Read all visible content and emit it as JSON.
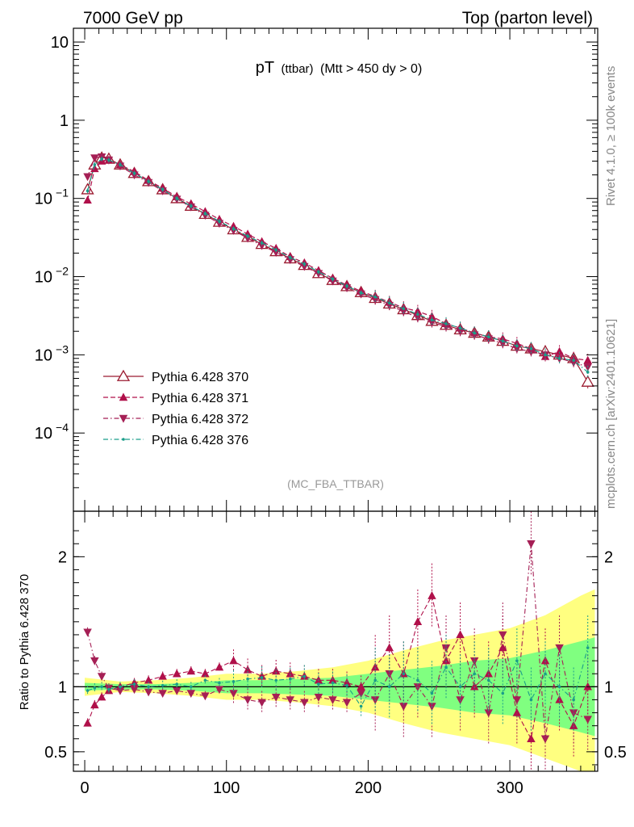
{
  "header": {
    "left_label": "7000 GeV pp",
    "right_label": "Top (parton level)"
  },
  "title": {
    "main": "pT",
    "sub": "(ttbar)",
    "cut": "(Mtt > 450 dy > 0)"
  },
  "analysis_label": "(MC_FBA_TTBAR)",
  "side_labels": {
    "rivet": "Rivet 4.1.0, ≥ 100k events",
    "site": "mcplots.cern.ch [arXiv:2401.10621]"
  },
  "colors": {
    "s370": "#9b1b30",
    "s371": "#b0104a",
    "s372": "#a51f55",
    "s376": "#1a9e8a",
    "band_yellow": "#ffff80",
    "band_green": "#80ff80"
  },
  "chart_data": [
    {
      "type": "line",
      "yscale": "log",
      "title": "pT (ttbar) (Mtt > 450 dy > 0)",
      "xlabel": "",
      "ylabel": "",
      "xlim": [
        -8,
        362
      ],
      "ylim": [
        1e-05,
        15
      ],
      "y_ticks": [
        {
          "value": 10,
          "label": "10"
        },
        {
          "value": 1,
          "label": "1"
        },
        {
          "value": 0.1,
          "label": "10",
          "exp": "−1"
        },
        {
          "value": 0.01,
          "label": "10",
          "exp": "−2"
        },
        {
          "value": 0.001,
          "label": "10",
          "exp": "−3"
        },
        {
          "value": 0.0001,
          "label": "10",
          "exp": "−4"
        }
      ],
      "legend": [
        {
          "label": "Pythia 6.428 370",
          "marker": "triangle-open",
          "style": "solid",
          "color": "#9b1b30"
        },
        {
          "label": "Pythia 6.428 371",
          "marker": "triangle-up",
          "style": "dashed",
          "color": "#b0104a"
        },
        {
          "label": "Pythia 6.428 372",
          "marker": "triangle-down",
          "style": "dashdot",
          "color": "#a51f55"
        },
        {
          "label": "Pythia 6.428 376",
          "marker": "dot",
          "style": "dashdot",
          "color": "#1a9e8a"
        }
      ],
      "legend_position": "bottom-left",
      "series": [
        {
          "name": "Pythia 6.428 370",
          "x": [
            2,
            7,
            12,
            17,
            25,
            35,
            45,
            55,
            65,
            75,
            85,
            95,
            105,
            115,
            125,
            135,
            145,
            155,
            165,
            175,
            185,
            195,
            205,
            215,
            225,
            235,
            245,
            255,
            265,
            275,
            285,
            295,
            305,
            315,
            325,
            335,
            345,
            355
          ],
          "y": [
            0.13,
            0.27,
            0.33,
            0.32,
            0.27,
            0.21,
            0.165,
            0.13,
            0.1,
            0.08,
            0.063,
            0.05,
            0.04,
            0.032,
            0.026,
            0.021,
            0.017,
            0.014,
            0.011,
            0.009,
            0.0075,
            0.0063,
            0.0053,
            0.0045,
            0.0038,
            0.0032,
            0.0027,
            0.0024,
            0.0021,
            0.0019,
            0.0017,
            0.0015,
            0.0013,
            0.0012,
            0.0011,
            0.001,
            0.0009,
            0.00045
          ]
        },
        {
          "name": "Pythia 6.428 371",
          "x": [
            2,
            7,
            12,
            17,
            25,
            35,
            45,
            55,
            65,
            75,
            85,
            95,
            105,
            115,
            125,
            135,
            145,
            155,
            165,
            175,
            185,
            195,
            205,
            215,
            225,
            235,
            245,
            255,
            265,
            275,
            285,
            295,
            305,
            315,
            325,
            335,
            345,
            355
          ],
          "y": [
            0.095,
            0.24,
            0.3,
            0.31,
            0.27,
            0.22,
            0.17,
            0.135,
            0.105,
            0.085,
            0.068,
            0.054,
            0.044,
            0.035,
            0.028,
            0.023,
            0.018,
            0.015,
            0.012,
            0.0095,
            0.0078,
            0.0065,
            0.0056,
            0.0047,
            0.004,
            0.0036,
            0.0031,
            0.0025,
            0.0022,
            0.0019,
            0.0017,
            0.0016,
            0.0014,
            0.0012,
            0.00095,
            0.0011,
            0.0009,
            0.00085
          ]
        },
        {
          "name": "Pythia 6.428 372",
          "x": [
            2,
            7,
            12,
            17,
            25,
            35,
            45,
            55,
            65,
            75,
            85,
            95,
            105,
            115,
            125,
            135,
            145,
            155,
            165,
            175,
            185,
            195,
            205,
            215,
            225,
            235,
            245,
            255,
            265,
            275,
            285,
            295,
            305,
            315,
            325,
            335,
            345,
            355
          ],
          "y": [
            0.19,
            0.33,
            0.34,
            0.31,
            0.26,
            0.2,
            0.16,
            0.125,
            0.098,
            0.078,
            0.061,
            0.048,
            0.039,
            0.031,
            0.025,
            0.0205,
            0.0165,
            0.0135,
            0.011,
            0.0088,
            0.0072,
            0.006,
            0.0051,
            0.0043,
            0.0036,
            0.003,
            0.0026,
            0.0023,
            0.002,
            0.0018,
            0.0016,
            0.0014,
            0.0012,
            0.0011,
            0.001,
            0.0009,
            0.0008,
            0.0007
          ]
        },
        {
          "name": "Pythia 6.428 376",
          "x": [
            2,
            7,
            12,
            17,
            25,
            35,
            45,
            55,
            65,
            75,
            85,
            95,
            105,
            115,
            125,
            135,
            145,
            155,
            165,
            175,
            185,
            195,
            205,
            215,
            225,
            235,
            245,
            255,
            265,
            275,
            285,
            295,
            305,
            315,
            325,
            335,
            345,
            355
          ],
          "y": [
            0.125,
            0.27,
            0.32,
            0.31,
            0.27,
            0.21,
            0.165,
            0.13,
            0.1,
            0.08,
            0.064,
            0.051,
            0.041,
            0.033,
            0.027,
            0.022,
            0.0175,
            0.0145,
            0.0115,
            0.0093,
            0.0076,
            0.0062,
            0.0055,
            0.0046,
            0.0039,
            0.0033,
            0.0028,
            0.0025,
            0.0022,
            0.0019,
            0.0017,
            0.0015,
            0.0013,
            0.0012,
            0.001,
            0.0009,
            0.00085,
            0.0006
          ]
        }
      ]
    },
    {
      "type": "line",
      "title": "",
      "ylabel": "Ratio to Pythia 6.428 370",
      "xlabel": "",
      "xlim": [
        -8,
        362
      ],
      "ylim": [
        0.35,
        2.35
      ],
      "x_ticks": [
        0,
        100,
        200,
        300
      ],
      "x_tick_labels": [
        "0",
        "100",
        "200",
        "300"
      ],
      "y_ticks": [
        0.5,
        1,
        2
      ],
      "y_tick_labels": [
        "0.5",
        "1",
        "2"
      ],
      "bands": {
        "x": [
          0,
          25,
          50,
          75,
          100,
          125,
          150,
          175,
          200,
          225,
          250,
          275,
          300,
          325,
          350,
          360
        ],
        "yellow_half_width": [
          0.07,
          0.04,
          0.05,
          0.07,
          0.1,
          0.1,
          0.12,
          0.15,
          0.2,
          0.28,
          0.35,
          0.4,
          0.45,
          0.55,
          0.7,
          0.75
        ],
        "green_half_width": [
          0.03,
          0.02,
          0.02,
          0.03,
          0.05,
          0.05,
          0.06,
          0.07,
          0.1,
          0.13,
          0.16,
          0.2,
          0.22,
          0.28,
          0.35,
          0.38
        ]
      },
      "series": [
        {
          "name": "Pythia 6.428 371",
          "x": [
            2,
            7,
            12,
            17,
            25,
            35,
            45,
            55,
            65,
            75,
            85,
            95,
            105,
            115,
            125,
            135,
            145,
            155,
            165,
            175,
            185,
            195,
            205,
            215,
            225,
            235,
            245,
            255,
            265,
            275,
            285,
            295,
            305,
            315,
            325,
            335,
            345,
            355
          ],
          "y": [
            0.72,
            0.86,
            0.92,
            0.97,
            1.0,
            1.03,
            1.05,
            1.08,
            1.1,
            1.12,
            1.1,
            1.15,
            1.2,
            1.13,
            1.08,
            1.12,
            1.1,
            1.08,
            1.05,
            1.05,
            1.03,
            1.0,
            1.15,
            1.3,
            1.1,
            1.5,
            1.7,
            1.2,
            1.4,
            1.0,
            1.1,
            1.3,
            0.8,
            0.6,
            1.2,
            0.9,
            0.7,
            1.0
          ]
        },
        {
          "name": "Pythia 6.428 372",
          "x": [
            2,
            7,
            12,
            17,
            25,
            35,
            45,
            55,
            65,
            75,
            85,
            95,
            105,
            115,
            125,
            135,
            145,
            155,
            165,
            175,
            185,
            195,
            205,
            215,
            225,
            235,
            245,
            255,
            265,
            275,
            285,
            295,
            305,
            315,
            325,
            335,
            345,
            355
          ],
          "y": [
            1.42,
            1.2,
            1.08,
            0.99,
            0.97,
            0.98,
            0.96,
            0.95,
            0.97,
            0.95,
            0.93,
            0.98,
            0.95,
            0.9,
            0.88,
            0.92,
            0.9,
            0.88,
            0.92,
            0.9,
            0.88,
            0.95,
            0.9,
            1.1,
            0.85,
            1.0,
            0.85,
            1.3,
            0.9,
            1.2,
            0.8,
            1.4,
            0.9,
            2.1,
            0.6,
            1.3,
            0.8,
            0.75
          ]
        },
        {
          "name": "Pythia 6.428 376",
          "x": [
            2,
            7,
            12,
            17,
            25,
            35,
            45,
            55,
            65,
            75,
            85,
            95,
            105,
            115,
            125,
            135,
            145,
            155,
            165,
            175,
            185,
            195,
            205,
            215,
            225,
            235,
            245,
            255,
            265,
            275,
            285,
            295,
            305,
            315,
            325,
            335,
            345,
            355
          ],
          "y": [
            0.97,
            0.99,
            1.0,
            0.98,
            1.0,
            1.02,
            1.0,
            1.01,
            1.02,
            1.0,
            1.05,
            1.03,
            1.04,
            1.06,
            1.07,
            1.05,
            1.06,
            1.08,
            1.02,
            1.03,
            1.01,
            0.85,
            1.05,
            1.0,
            1.1,
            1.05,
            0.95,
            1.15,
            1.0,
            1.1,
            1.05,
            0.95,
            1.2,
            0.9,
            1.1,
            1.0,
            0.9,
            1.3
          ]
        }
      ]
    }
  ]
}
